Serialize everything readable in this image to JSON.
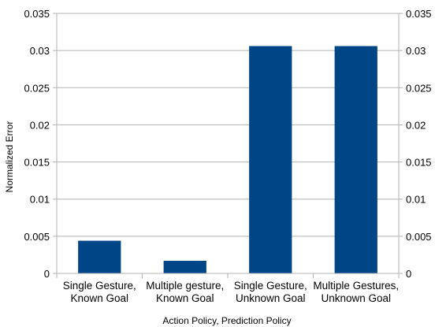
{
  "chart_data": {
    "type": "bar",
    "title": "",
    "xlabel": "Action Policy, Prediction Policy",
    "ylabel": "Normalized Error",
    "categories": [
      [
        "Single Gesture,",
        "Known Goal"
      ],
      [
        "Multiple gesture,",
        "Known Goal"
      ],
      [
        "Single Gesture,",
        "Unknown Goal"
      ],
      [
        "Multiple Gestures,",
        "Unknown Goal"
      ]
    ],
    "values": [
      0.0044,
      0.0017,
      0.0306,
      0.0306
    ],
    "ylim": [
      0,
      0.035
    ],
    "yticks": [
      "0",
      "0.005",
      "0.01",
      "0.015",
      "0.02",
      "0.025",
      "0.03",
      "0.035"
    ],
    "ytick_values": [
      0,
      0.005,
      0.01,
      0.015,
      0.02,
      0.025,
      0.03,
      0.035
    ],
    "secondary_y_axis": true,
    "grid": true,
    "legend": "none",
    "colors": {
      "bar": "#004586",
      "grid": "#b3b3b3",
      "axis": "#b3b3b3"
    }
  }
}
